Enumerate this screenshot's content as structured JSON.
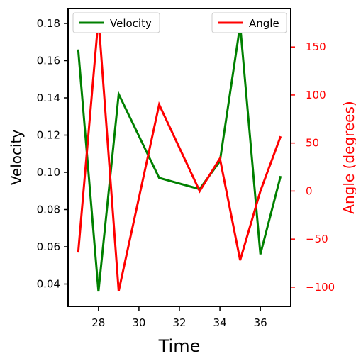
{
  "chart_data": {
    "type": "line",
    "xlabel": "Time",
    "ylabel_left": "Velocity",
    "ylabel_right": "Angle (degrees)",
    "xlim": [
      26.5,
      37.5
    ],
    "ylim_left": [
      0.028,
      0.188
    ],
    "ylim_right": [
      -120,
      190
    ],
    "x_ticks": [
      28,
      30,
      32,
      34,
      36
    ],
    "y_left_ticks": [
      0.04,
      0.06,
      0.08,
      0.1,
      0.12,
      0.14,
      0.16,
      0.18
    ],
    "y_left_tick_labels": [
      "0.04",
      "0.06",
      "0.08",
      "0.10",
      "0.12",
      "0.14",
      "0.16",
      "0.18"
    ],
    "y_right_ticks": [
      -100,
      -50,
      0,
      50,
      100,
      150
    ],
    "y_right_tick_labels": [
      "−100",
      "−50",
      "0",
      "50",
      "100",
      "150"
    ],
    "grid": false,
    "series": [
      {
        "name": "Velocity",
        "axis": "left",
        "color": "#008000",
        "x": [
          27,
          28,
          29,
          31,
          33,
          34,
          35,
          36,
          37
        ],
        "values": [
          0.166,
          0.036,
          0.142,
          0.097,
          0.091,
          0.106,
          0.179,
          0.056,
          0.098
        ]
      },
      {
        "name": "Angle",
        "axis": "right",
        "color": "#ff0000",
        "x": [
          27,
          28,
          29,
          31,
          33,
          34,
          35,
          36,
          37
        ],
        "values": [
          -64,
          180,
          -104,
          90,
          0,
          34,
          -72,
          0,
          57
        ]
      }
    ],
    "legend_left": {
      "label": "Velocity",
      "placement": "upper-left"
    },
    "legend_right": {
      "label": "Angle",
      "placement": "upper-right"
    }
  }
}
